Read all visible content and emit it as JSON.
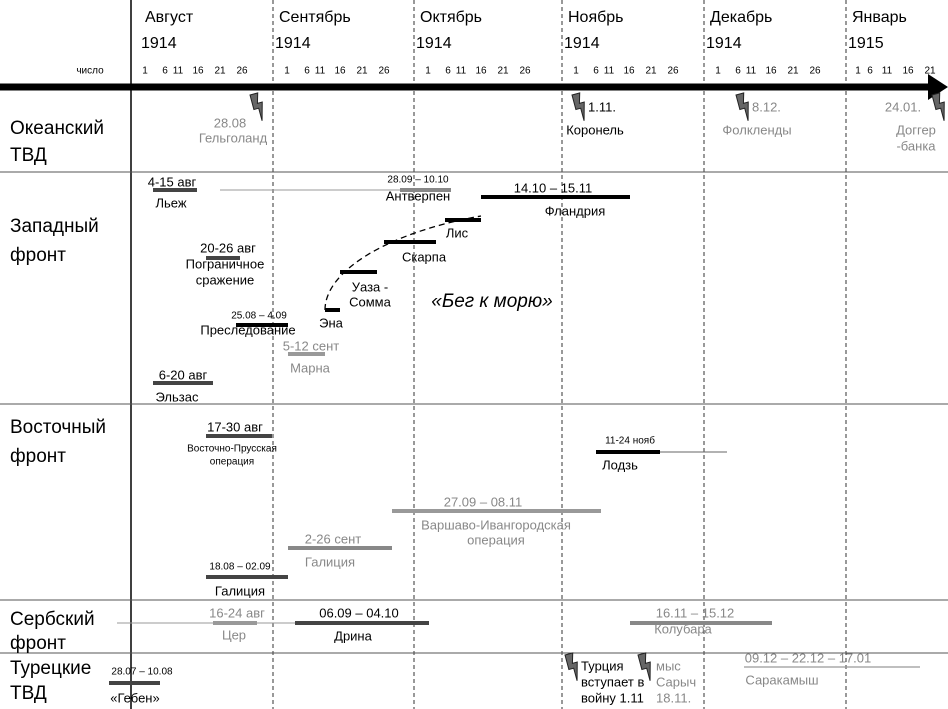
{
  "header": {
    "day_label": "число",
    "months": [
      {
        "name": "Август",
        "year": "1914",
        "days": [
          "1",
          "6",
          "11",
          "16",
          "21",
          "26"
        ]
      },
      {
        "name": "Сентябрь",
        "year": "1914",
        "days": [
          "1",
          "6",
          "11",
          "16",
          "21",
          "26"
        ]
      },
      {
        "name": "Октябрь",
        "year": "1914",
        "days": [
          "1",
          "6",
          "11",
          "16",
          "21",
          "26"
        ]
      },
      {
        "name": "Ноябрь",
        "year": "1914",
        "days": [
          "1",
          "6",
          "11",
          "16",
          "21",
          "26"
        ]
      },
      {
        "name": "Декабрь",
        "year": "1914",
        "days": [
          "1",
          "6",
          "11",
          "16",
          "21",
          "26"
        ]
      },
      {
        "name": "Январь",
        "year": "1915",
        "days": [
          "1",
          "6",
          "11",
          "16",
          "21"
        ]
      }
    ]
  },
  "theaters": [
    {
      "name": [
        "Океанский",
        "ТВД"
      ],
      "events": [
        {
          "date": "28.08",
          "label": [
            "Гельголанд"
          ]
        },
        {
          "date": "1.11.",
          "label": [
            "Коронель"
          ]
        },
        {
          "date": "8.12.",
          "label": [
            "Фолкленды"
          ]
        },
        {
          "date": "24.01.",
          "label": [
            "Доггер",
            "-банка"
          ]
        }
      ]
    },
    {
      "name": [
        "Западный",
        "фронт"
      ],
      "annotation": "«Бег к морю»",
      "events": [
        {
          "date": "4-15 авг",
          "label": [
            "Льеж"
          ]
        },
        {
          "date": "28.09 – 10.10",
          "label": [
            "Антверпен"
          ]
        },
        {
          "date": "14.10 – 15.11",
          "label": [
            "Фландрия"
          ]
        },
        {
          "label": [
            "Лис"
          ]
        },
        {
          "label": [
            "Скарпа"
          ]
        },
        {
          "label": [
            "Уаза -",
            "Сомма"
          ]
        },
        {
          "label": [
            "Эна"
          ]
        },
        {
          "date": "20-26 авг",
          "label": [
            "Пограничное",
            "сражение"
          ]
        },
        {
          "date": "25.08 – 4.09",
          "label": [
            "Преследование"
          ]
        },
        {
          "date": "5-12 сент",
          "label": [
            "Марна"
          ]
        },
        {
          "date": "6-20 авг",
          "label": [
            "Эльзас"
          ]
        }
      ]
    },
    {
      "name": [
        "Восточный",
        "фронт"
      ],
      "events": [
        {
          "date": "17-30 авг",
          "label": [
            "Восточно-Прусская",
            "операция"
          ]
        },
        {
          "date": "11-24 нояб",
          "label": [
            "Лодзь"
          ]
        },
        {
          "date": "27.09 – 08.11",
          "label": [
            "Варшаво-Ивангородская",
            "операция"
          ]
        },
        {
          "date": "2-26 сент",
          "label": [
            "Галиция"
          ]
        },
        {
          "date": "18.08 – 02.09",
          "label": [
            "Галиция"
          ]
        }
      ]
    },
    {
      "name": [
        "Сербский",
        "фронт"
      ],
      "events": [
        {
          "date": "16-24 авг",
          "label": [
            "Цер"
          ]
        },
        {
          "date": "06.09 – 04.10",
          "label": [
            "Дрина"
          ]
        },
        {
          "date": "16.11 – 15.12",
          "label": [
            "Колубара"
          ]
        }
      ]
    },
    {
      "name": [
        "Турецкие",
        "ТВД"
      ],
      "events": [
        {
          "date": "28.07 – 10.08",
          "label": [
            "«Гебен»"
          ]
        },
        {
          "label": [
            "Турция",
            "вступает в",
            "войну 1.11"
          ]
        },
        {
          "label": [
            "мыс",
            "Сарыч",
            "18.11."
          ]
        },
        {
          "date": "09.12 – 22.12 – 17.01",
          "label": [
            "Саракамыш"
          ]
        }
      ]
    }
  ]
}
